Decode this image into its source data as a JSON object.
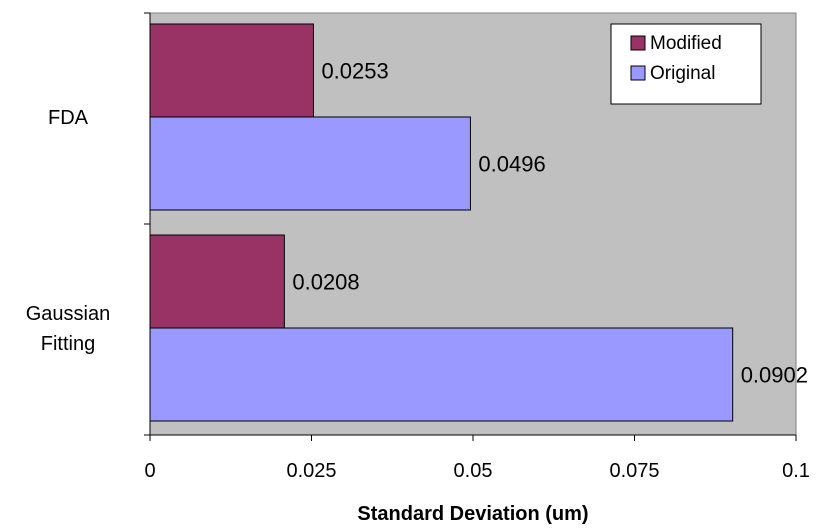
{
  "chart_data": {
    "type": "bar",
    "orientation": "horizontal",
    "categories": [
      "FDA",
      "Gaussian Fitting"
    ],
    "category_lines": [
      [
        "FDA"
      ],
      [
        "Gaussian",
        "Fitting"
      ]
    ],
    "series": [
      {
        "name": "Modified",
        "values": [
          0.0253,
          0.0208
        ],
        "labels": [
          "0.0253",
          "0.0208"
        ]
      },
      {
        "name": "Original",
        "values": [
          0.0496,
          0.0902
        ],
        "labels": [
          "0.0496",
          "0.0902"
        ]
      }
    ],
    "xlabel": "Standard Deviation (um)",
    "xlim": [
      0,
      0.1
    ],
    "xticks": [
      "0",
      "0.025",
      "0.05",
      "0.075",
      "0.1"
    ],
    "grid": false,
    "legend_position": "top-right",
    "colors": {
      "plot_background": "#C0C0C0",
      "Modified": "#993366",
      "Original": "#9999FF"
    }
  }
}
